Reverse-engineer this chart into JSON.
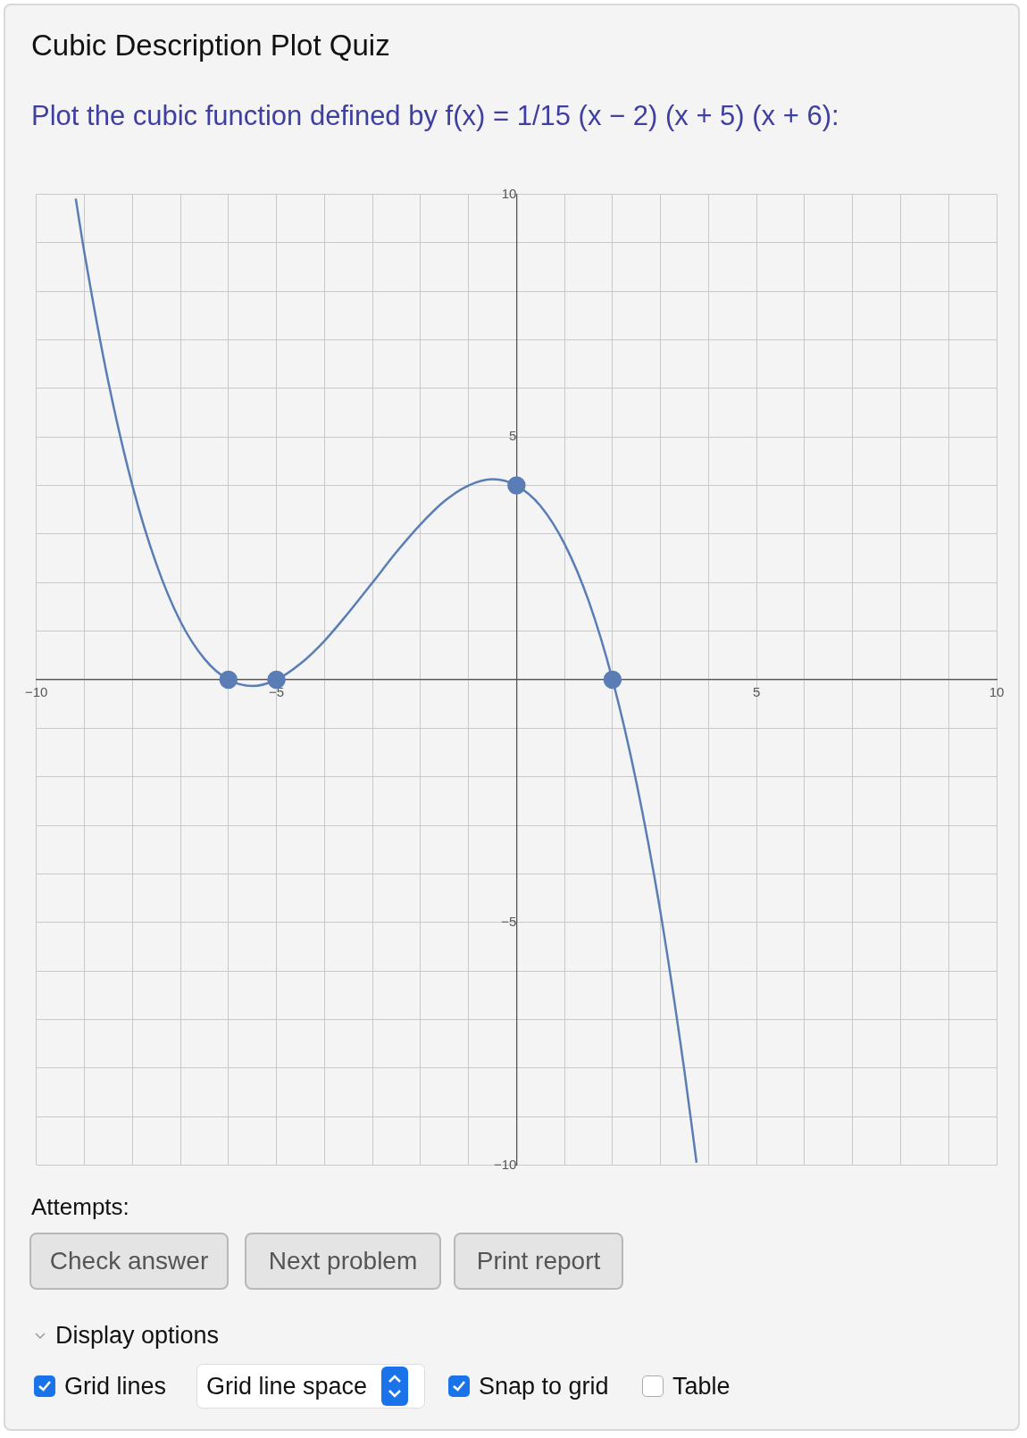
{
  "chart_data": {
    "type": "line",
    "title": "Cubic Description Plot Quiz",
    "subtitle": "Plot the cubic function defined by f(x) = 1/15 (x − 2) (x + 5) (x + 6):",
    "xlim": [
      -10,
      10
    ],
    "ylim": [
      -10,
      10
    ],
    "xticks": [
      -10,
      {
        "value": -9,
        "label": null
      },
      {
        "value": -8,
        "label": null
      },
      {
        "value": -7,
        "label": null
      },
      {
        "value": -6,
        "label": null
      },
      -5,
      {
        "value": -4,
        "label": null
      },
      {
        "value": -3,
        "label": null
      },
      {
        "value": -2,
        "label": null
      },
      {
        "value": -1,
        "label": null
      },
      {
        "value": 0,
        "label": null
      },
      {
        "value": 1,
        "label": null
      },
      {
        "value": 2,
        "label": null
      },
      {
        "value": 3,
        "label": null
      },
      {
        "value": 4,
        "label": null
      },
      5,
      {
        "value": 6,
        "label": null
      },
      {
        "value": 7,
        "label": null
      },
      {
        "value": 8,
        "label": null
      },
      {
        "value": 9,
        "label": null
      },
      10
    ],
    "yticks": [
      -10,
      {
        "value": -9,
        "label": null
      },
      {
        "value": -8,
        "label": null
      },
      {
        "value": -7,
        "label": null
      },
      {
        "value": -6,
        "label": null
      },
      -5,
      {
        "value": -4,
        "label": null
      },
      {
        "value": -3,
        "label": null
      },
      {
        "value": -2,
        "label": null
      },
      {
        "value": -1,
        "label": null
      },
      {
        "value": 0,
        "label": null
      },
      {
        "value": 1,
        "label": null
      },
      {
        "value": 2,
        "label": null
      },
      {
        "value": 3,
        "label": null
      },
      {
        "value": 4,
        "label": null
      },
      5,
      {
        "value": 6,
        "label": null
      },
      {
        "value": 7,
        "label": null
      },
      {
        "value": 8,
        "label": null
      },
      {
        "value": 9,
        "label": null
      },
      10
    ],
    "grid": true,
    "series": [
      {
        "color": "#5a7db5",
        "marker": "none",
        "x": [
          -9.18,
          -9,
          -8.5,
          -8,
          -7.5,
          -7,
          -6.5,
          -6,
          -5.5,
          -5,
          -4.5,
          -4,
          -3.5,
          -3,
          -2.5,
          -2,
          -1.5,
          -1,
          -0.5,
          0,
          0.5,
          1,
          1.5,
          2,
          2.5,
          3,
          3.5,
          3.75
        ],
        "values": [
          9.91,
          8.8,
          6.13,
          4,
          2.38,
          1.2,
          0.43,
          0,
          -0.13,
          0,
          0.33,
          0.8,
          1.38,
          2,
          2.63,
          3.2,
          3.68,
          4,
          4.13,
          4,
          3.58,
          2.8,
          1.63,
          0,
          -2.13,
          -4.8,
          -8.08,
          -9.95
        ]
      },
      {
        "type": "scatter",
        "color": "#5a7db5",
        "marker": "circle",
        "x": [
          -6,
          -5,
          0,
          2
        ],
        "values": [
          0,
          0,
          4,
          0
        ]
      }
    ],
    "annotations": [
      "Attempts:",
      "Check answer",
      "Next problem",
      "Print report",
      "Display options",
      "Grid lines",
      "Grid line space",
      "Snap to grid",
      "Table"
    ]
  }
}
